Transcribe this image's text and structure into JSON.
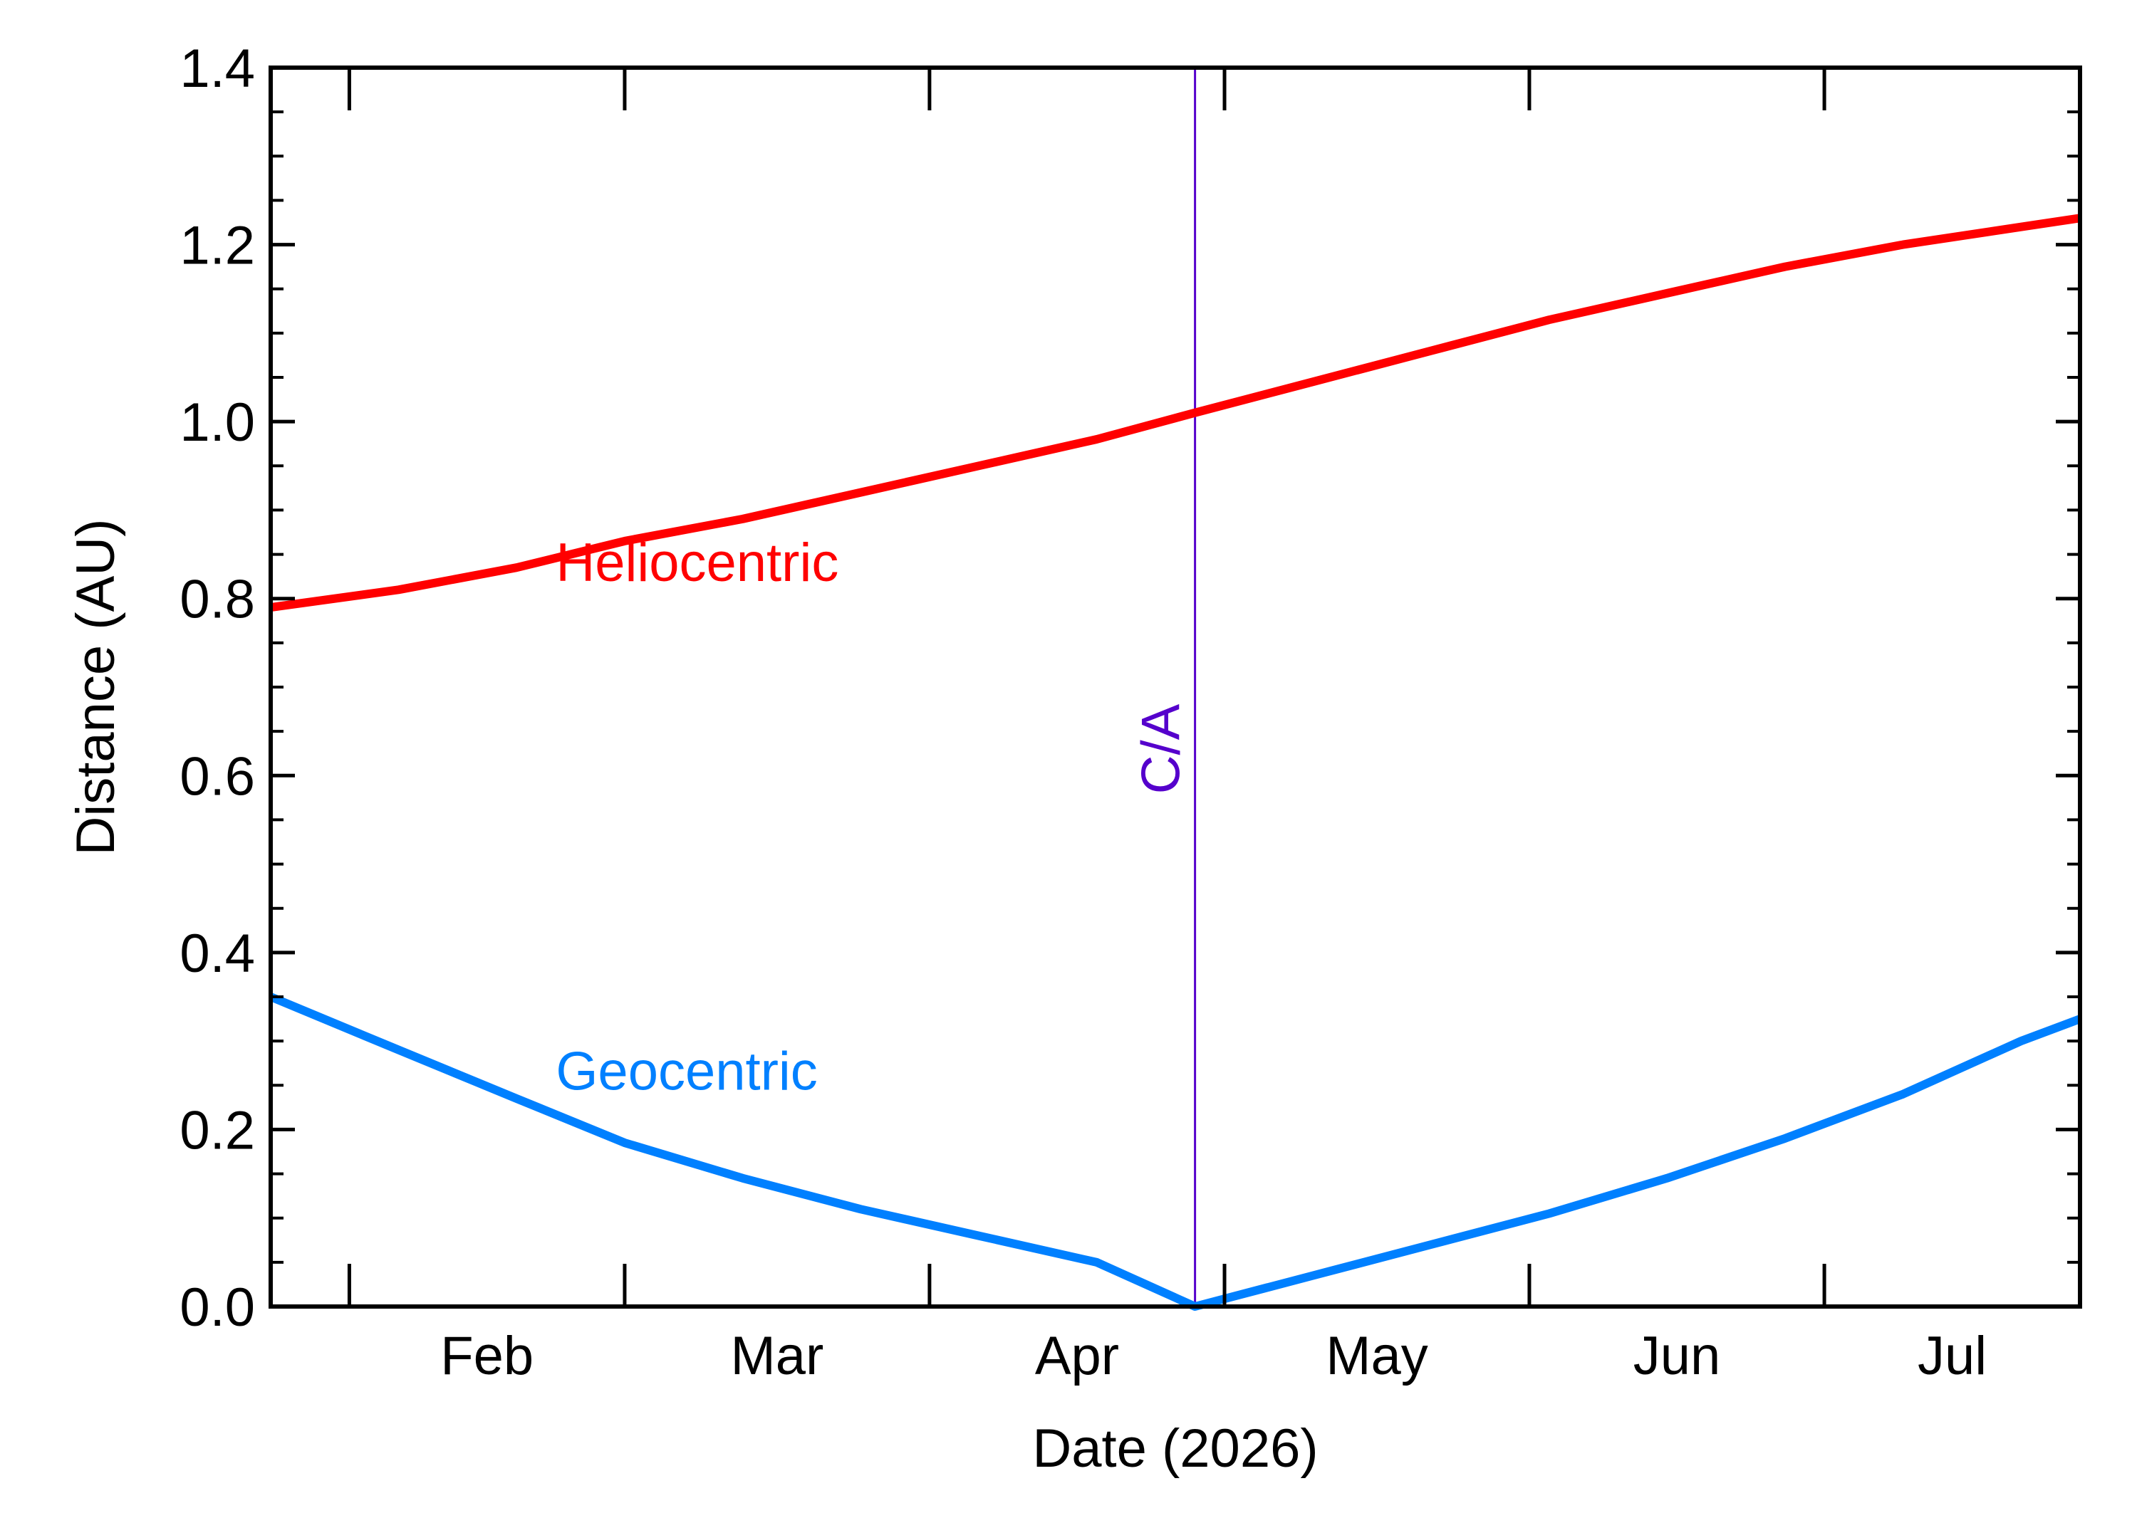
{
  "chart_data": {
    "type": "line",
    "xlabel": "Date (2026)",
    "ylabel": "Distance (AU)",
    "ylim": [
      0.0,
      1.4
    ],
    "xlim": [
      "2026-01-24",
      "2026-07-27"
    ],
    "x_ticks": [
      {
        "label": "Feb",
        "date": "2026-02-01"
      },
      {
        "label": "Mar",
        "date": "2026-03-01"
      },
      {
        "label": "Apr",
        "date": "2026-04-01"
      },
      {
        "label": "May",
        "date": "2026-05-01"
      },
      {
        "label": "Jun",
        "date": "2026-06-01"
      },
      {
        "label": "Jul",
        "date": "2026-07-01"
      }
    ],
    "y_ticks": [
      "0.0",
      "0.2",
      "0.4",
      "0.6",
      "0.8",
      "1.0",
      "1.2",
      "1.4"
    ],
    "grid": false,
    "series": [
      {
        "name": "Heliocentric",
        "color": "#ff0000",
        "x": [
          "2026-01-24",
          "2026-02-06",
          "2026-02-18",
          "2026-03-01",
          "2026-03-13",
          "2026-03-25",
          "2026-04-06",
          "2026-04-18",
          "2026-04-28",
          "2026-05-10",
          "2026-05-22",
          "2026-06-03",
          "2026-06-15",
          "2026-06-27",
          "2026-07-09",
          "2026-07-21",
          "2026-07-27"
        ],
        "y": [
          0.79,
          0.81,
          0.835,
          0.865,
          0.89,
          0.92,
          0.95,
          0.98,
          1.01,
          1.045,
          1.08,
          1.115,
          1.145,
          1.175,
          1.2,
          1.22,
          1.23
        ]
      },
      {
        "name": "Geocentric",
        "color": "#0080ff",
        "x": [
          "2026-01-24",
          "2026-02-06",
          "2026-02-18",
          "2026-03-01",
          "2026-03-13",
          "2026-03-25",
          "2026-04-06",
          "2026-04-18",
          "2026-04-28",
          "2026-05-10",
          "2026-05-22",
          "2026-06-03",
          "2026-06-15",
          "2026-06-27",
          "2026-07-09",
          "2026-07-21",
          "2026-07-27"
        ],
        "y": [
          0.35,
          0.29,
          0.235,
          0.185,
          0.145,
          0.11,
          0.08,
          0.05,
          0.0,
          0.035,
          0.07,
          0.105,
          0.145,
          0.19,
          0.24,
          0.3,
          0.325
        ]
      }
    ],
    "annotations": [
      {
        "text": "Heliocentric",
        "color": "#ff0000",
        "x": "2026-02-22",
        "y": 0.82
      },
      {
        "text": "Geocentric",
        "color": "#0080ff",
        "x": "2026-02-22",
        "y": 0.245
      }
    ],
    "vline": {
      "label": "C/A",
      "date": "2026-04-28",
      "color": "#5500cc"
    }
  }
}
